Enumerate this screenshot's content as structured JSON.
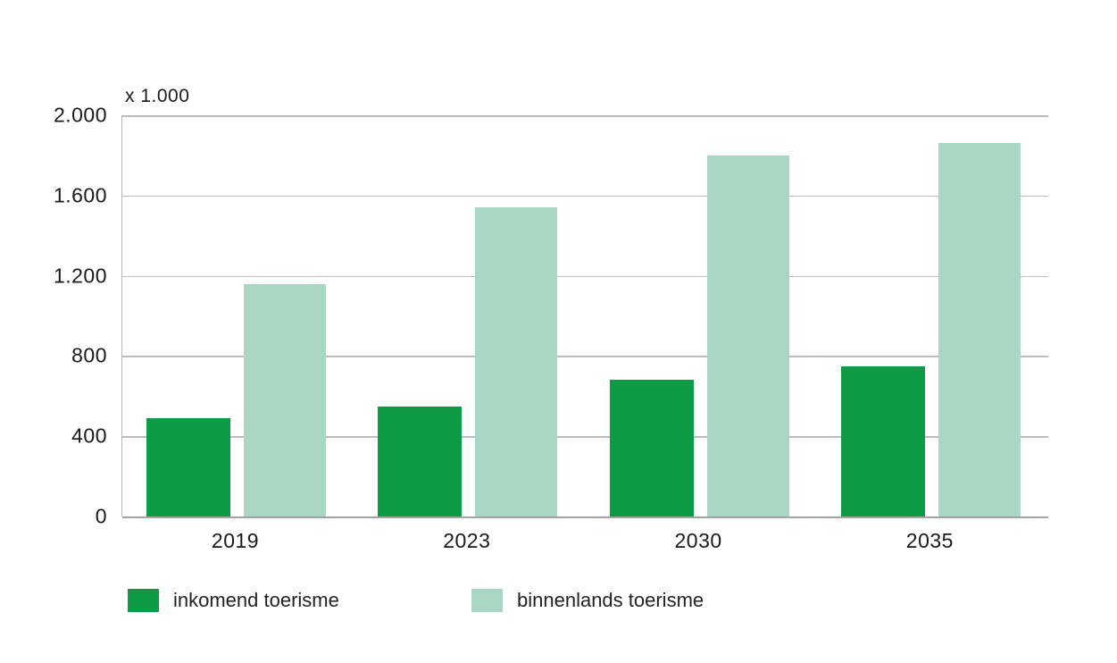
{
  "chart_data": {
    "type": "bar",
    "title": "",
    "unit_label": "x 1.000",
    "categories": [
      "2019",
      "2023",
      "2030",
      "2035"
    ],
    "series": [
      {
        "name": "inkomend toerisme",
        "color": "#0d9b45",
        "values": [
          490,
          550,
          680,
          750
        ]
      },
      {
        "name": "binnenlands toerisme",
        "color": "#a9d6c5",
        "values": [
          1160,
          1540,
          1800,
          1860
        ]
      }
    ],
    "ylim": [
      0,
      2000
    ],
    "y_ticks": [
      {
        "value": 2000,
        "label": "2.000"
      },
      {
        "value": 1600,
        "label": "1.600"
      },
      {
        "value": 1200,
        "label": "1.200"
      },
      {
        "value": 800,
        "label": "800"
      },
      {
        "value": 400,
        "label": "400"
      },
      {
        "value": 0,
        "label": "0"
      }
    ],
    "grid": true,
    "legend_position": "bottom"
  },
  "colors": {
    "background": "#ffffff",
    "grid": "#bcbcbc",
    "axis": "#a3a3a3",
    "text": "#1a1a1a"
  }
}
